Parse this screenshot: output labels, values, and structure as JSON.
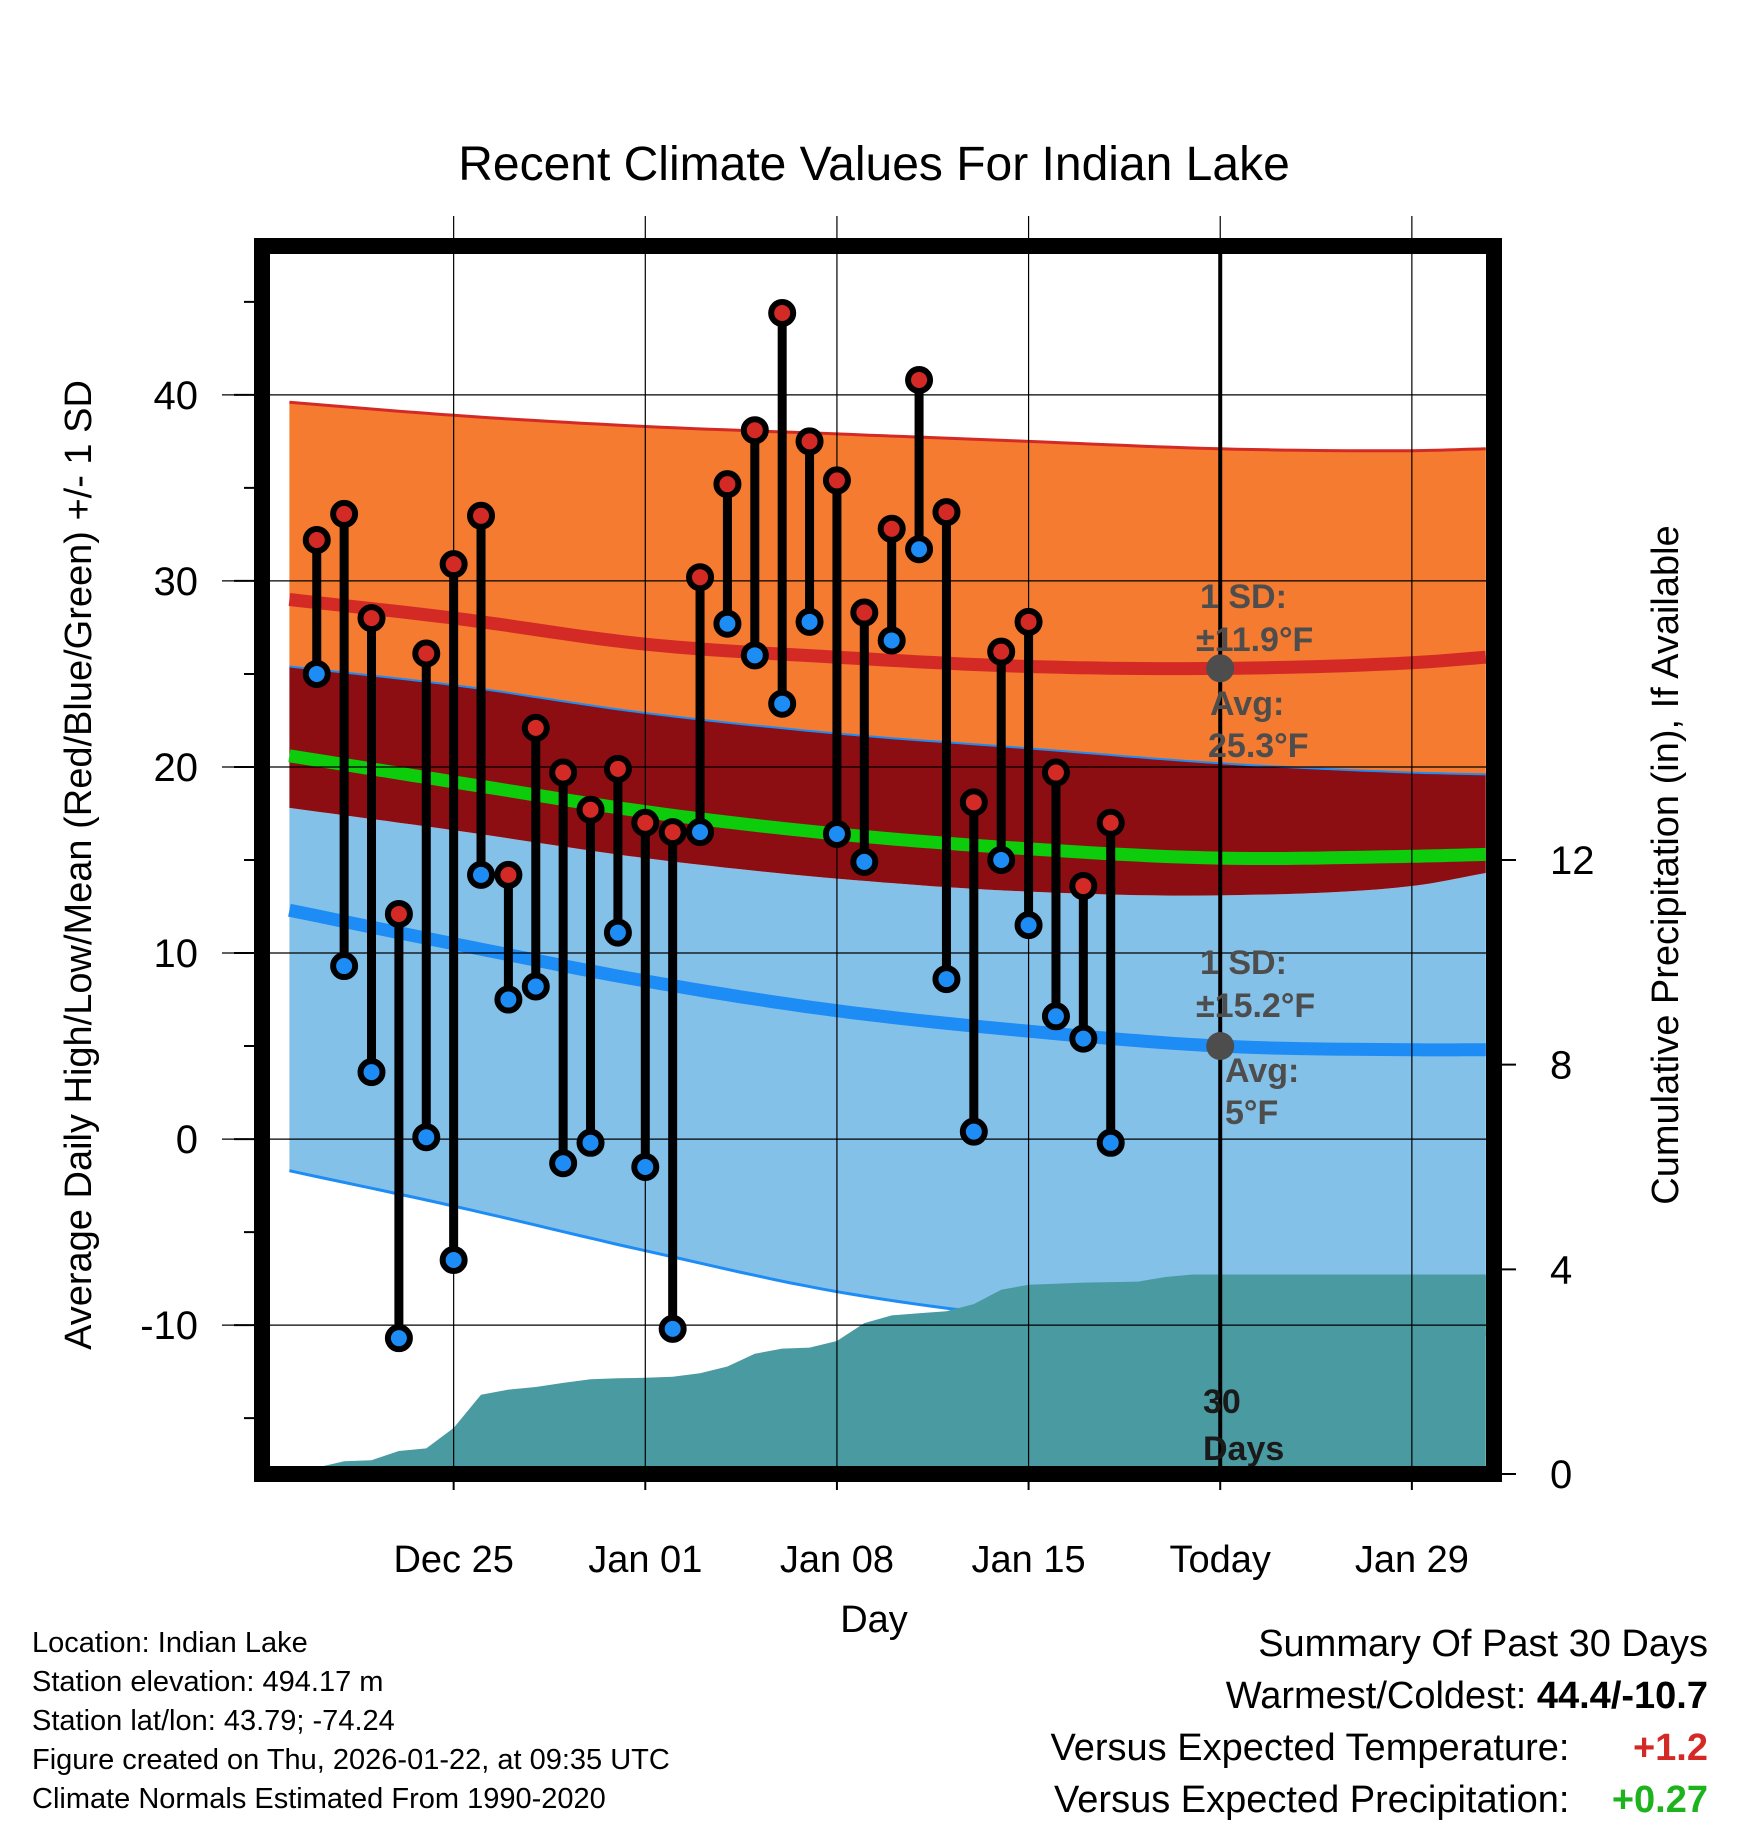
{
  "chart_data": {
    "type": "line",
    "title": "Recent Climate Values For Indian Lake",
    "xlabel": "Day",
    "ylabel": "Average Daily High/Low/Mean (Red/Blue/Green) +/- 1 SD",
    "y2label": "Cumulative Precipitation (in), If Available",
    "xlim": [
      -4,
      41
    ],
    "ylim": [
      -18,
      48
    ],
    "y2lim": [
      0,
      24
    ],
    "x_ticks": [
      {
        "x": 3,
        "label": "Dec 25"
      },
      {
        "x": 10,
        "label": "Jan 01"
      },
      {
        "x": 17,
        "label": "Jan 08"
      },
      {
        "x": 24,
        "label": "Jan 15"
      },
      {
        "x": 31,
        "label": "Today"
      },
      {
        "x": 38,
        "label": "Jan 29"
      }
    ],
    "y_ticks": [
      -10,
      0,
      10,
      20,
      30,
      40
    ],
    "y2_ticks": [
      0,
      4,
      8,
      12
    ],
    "normals_x": [
      -3,
      3,
      10,
      17,
      24,
      31,
      38,
      40.7
    ],
    "normal_high": [
      29.0,
      28.0,
      26.6,
      25.9,
      25.4,
      25.3,
      25.6,
      25.9
    ],
    "normal_low": [
      12.3,
      10.5,
      8.5,
      6.9,
      5.8,
      5.0,
      4.8,
      4.8
    ],
    "normal_mean": [
      20.6,
      19.2,
      17.6,
      16.4,
      15.6,
      15.1,
      15.2,
      15.3
    ],
    "high_sd_upper": [
      39.6,
      38.9,
      38.3,
      37.9,
      37.5,
      37.1,
      37.0,
      37.1
    ],
    "high_sd_lower": [
      25.4,
      24.4,
      22.9,
      21.8,
      21.0,
      20.2,
      19.7,
      19.6
    ],
    "low_sd_upper": [
      17.8,
      16.6,
      15.1,
      14.0,
      13.3,
      13.1,
      13.6,
      14.3
    ],
    "low_sd_lower": [
      -1.7,
      -3.6,
      -6.0,
      -8.2,
      -9.6,
      -10.3,
      -10.5,
      -10.5
    ],
    "daily_x": [
      -2,
      -1,
      0,
      1,
      2,
      3,
      4,
      5,
      6,
      7,
      8,
      9,
      10,
      11,
      12,
      13,
      14,
      15,
      16,
      17,
      18,
      19,
      20,
      21,
      22,
      23,
      24,
      25,
      26,
      27
    ],
    "daily_high": [
      32.2,
      33.6,
      28.0,
      12.1,
      26.1,
      30.9,
      33.5,
      14.2,
      22.1,
      19.7,
      17.7,
      19.9,
      17.0,
      16.5,
      30.2,
      35.2,
      38.1,
      44.4,
      37.5,
      35.4,
      28.3,
      32.8,
      40.8,
      33.7,
      18.1,
      26.2,
      27.8,
      19.7,
      13.6,
      17.0
    ],
    "daily_low": [
      25.0,
      9.3,
      3.6,
      -10.7,
      0.1,
      -6.5,
      14.2,
      7.5,
      8.2,
      -1.3,
      -0.2,
      11.1,
      -1.5,
      -10.2,
      16.5,
      27.7,
      26.0,
      23.4,
      27.8,
      16.4,
      14.9,
      26.8,
      31.7,
      8.6,
      0.4,
      15.0,
      11.5,
      6.6,
      5.4,
      -0.2
    ],
    "precip_x": [
      -3,
      -1,
      0,
      1,
      2,
      3,
      4,
      5,
      6,
      7,
      8,
      9,
      10,
      11,
      12,
      13,
      14,
      15,
      16,
      17,
      18,
      19,
      20,
      21,
      22,
      23,
      24,
      25,
      26,
      27,
      28,
      29,
      30,
      31,
      40.7
    ],
    "precip": [
      0.0,
      0.25,
      0.27,
      0.45,
      0.5,
      0.9,
      1.55,
      1.65,
      1.7,
      1.78,
      1.85,
      1.87,
      1.88,
      1.9,
      1.97,
      2.1,
      2.35,
      2.45,
      2.47,
      2.6,
      2.95,
      3.1,
      3.14,
      3.18,
      3.32,
      3.6,
      3.7,
      3.72,
      3.74,
      3.75,
      3.76,
      3.85,
      3.9,
      3.9,
      3.9
    ],
    "annotations": {
      "high_sd": "1 SD:",
      "high_sd_val": "±11.9°F",
      "high_avg": "Avg:",
      "high_avg_val": "25.3°F",
      "low_sd": "1 SD:",
      "low_sd_val": "±15.2°F",
      "low_avg": "Avg:",
      "low_avg_val": "5°F",
      "days_num": "30",
      "days_word": "Days"
    },
    "colors": {
      "high_band": "#f47b30",
      "high_line": "#d42a26",
      "low_band": "#84c1e8",
      "low_line": "#1e8cf5",
      "overlap_band": "#8c0e12",
      "mean_line": "#0ccc0c",
      "precip_fill": "#4a9aa2",
      "high_dot": "#d42a26",
      "low_dot": "#1e8cf5",
      "avg_marker": "#4d4d4d"
    }
  },
  "info": {
    "location": "Location: Indian Lake",
    "elevation": "Station elevation: 494.17 m",
    "latlon": "Station lat/lon: 43.79; -74.24",
    "created": "Figure created on Thu, 2026-01-22, at 09:35 UTC",
    "normals": "Climate Normals Estimated From 1990-2020"
  },
  "summary": {
    "title": "Summary Of Past 30 Days",
    "warm_cold_label": "Warmest/Coldest:",
    "warm_cold_value": "44.4/-10.7",
    "temp_label": "Versus Expected Temperature:",
    "temp_value": "+1.2",
    "temp_color": "#d42a26",
    "precip_label": "Versus Expected Precipitation:",
    "precip_value": "+0.27",
    "precip_color": "#1db31d"
  }
}
